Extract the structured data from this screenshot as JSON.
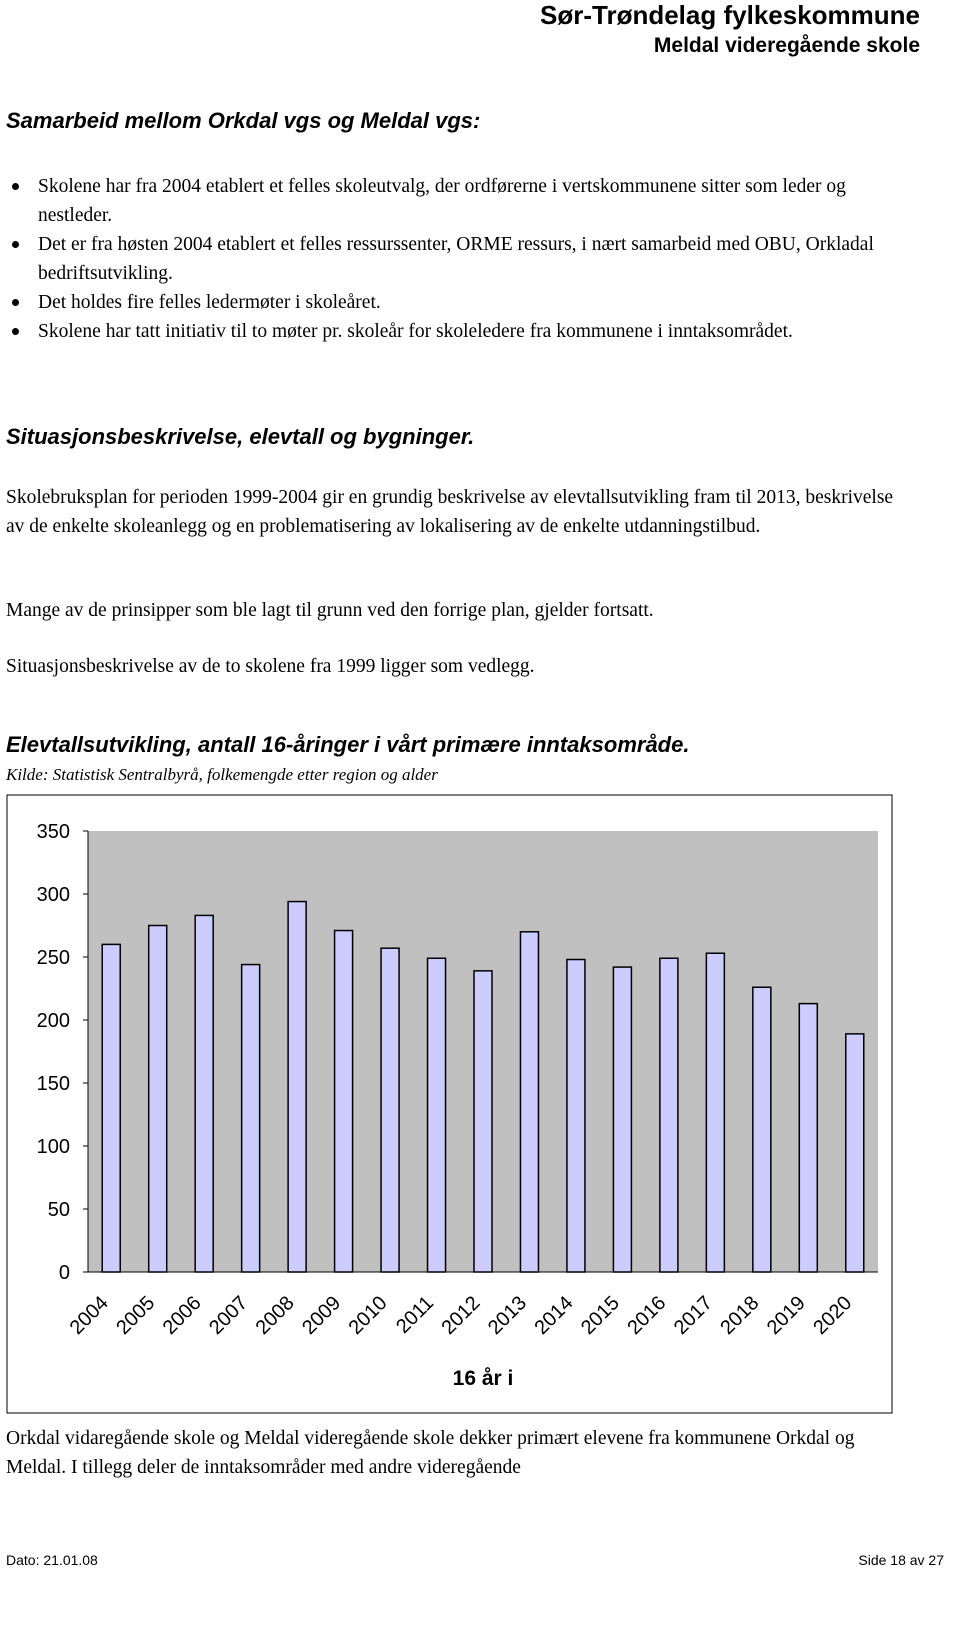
{
  "header": {
    "title": "Sør-Trøndelag fylkeskommune",
    "subtitle": "Meldal videregående skole"
  },
  "sections": [
    {
      "heading": "Samarbeid mellom Orkdal  vgs og Meldal vgs:",
      "bullets": [
        "Skolene har fra 2004 etablert et felles skoleutvalg, der ordførerne i vertskommunene sitter som leder og nestleder.",
        "Det er fra høsten 2004 etablert et felles ressurssenter, ORME ressurs, i nært samarbeid med OBU, Orkladal bedriftsutvikling.",
        "Det holdes fire felles ledermøter i skoleåret.",
        "Skolene har tatt initiativ til to møter pr. skoleår for skoleledere fra kommunene i inntaksområdet."
      ]
    },
    {
      "heading": "Situasjonsbeskrivelse, elevtall og bygninger.",
      "paragraphs": [
        "Skolebruksplan for perioden 1999-2004 gir en grundig beskrivelse av elevtallsutvikling fram til 2013, beskrivelse av de enkelte skoleanlegg og en problematisering av lokalisering av de enkelte utdanningstilbud.",
        "Mange av de prinsipper som ble lagt til grunn ved den forrige plan, gjelder fortsatt.",
        "Situasjonsbeskrivelse av de to skolene fra 1999 ligger som vedlegg."
      ]
    }
  ],
  "chart_heading": "Elevtallsutvikling, antall 16-åringer i vårt primære inntaksområde.",
  "chart_source": "Kilde: Statistisk Sentralbyrå, folkemengde etter region og alder",
  "chart_data": {
    "type": "bar",
    "x_label": "16 år i",
    "categories": [
      "2004",
      "2005",
      "2006",
      "2007",
      "2008",
      "2009",
      "2010",
      "2011",
      "2012",
      "2013",
      "2014",
      "2015",
      "2016",
      "2017",
      "2018",
      "2019",
      "2020"
    ],
    "values": [
      260,
      275,
      283,
      244,
      294,
      271,
      257,
      249,
      239,
      270,
      248,
      242,
      249,
      253,
      226,
      213,
      189
    ],
    "color": "#ccccff",
    "plot_background": "#c0c0c0",
    "ylim": [
      0,
      350
    ],
    "yticks": [
      0,
      50,
      100,
      150,
      200,
      250,
      300,
      350
    ],
    "grid": false
  },
  "closing_paragraph": "Orkdal vidaregående skole og Meldal videregående skole dekker primært elevene fra kommunene Orkdal og Meldal.  I tillegg deler de inntaksområder med andre videregående",
  "footer": {
    "date": "Dato: 21.01.08",
    "page": "Side 18 av 27"
  }
}
